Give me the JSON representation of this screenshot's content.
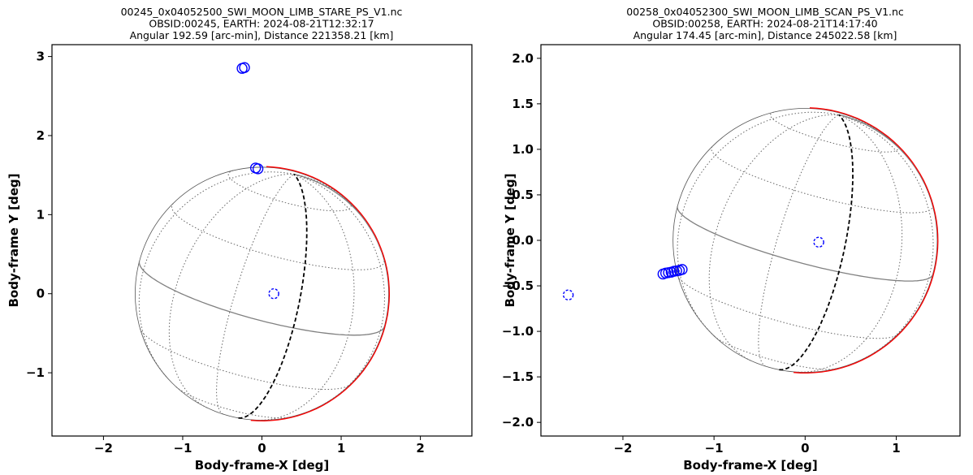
{
  "chart_data": [
    {
      "type": "scatter",
      "title_lines": [
        "00245_0x04052500_SWI_MOON_LIMB_STARE_PS_V1.nc",
        "OBSID:00245, EARTH: 2024-08-21T12:32:17",
        "Angular 192.59 [arc-min], Distance 221358.21 [km]"
      ],
      "xlabel": "Body-frame-X [deg]",
      "ylabel": "Body-frame Y [deg]",
      "xlim": [
        -2.65,
        2.65
      ],
      "ylim": [
        -1.8,
        3.15
      ],
      "xticks": [
        -2,
        -1,
        0,
        1,
        2
      ],
      "xtick_labels": [
        "−2",
        "−1",
        "0",
        "1",
        "2"
      ],
      "yticks": [
        -1,
        0,
        1,
        2,
        3
      ],
      "ytick_labels": [
        "−1",
        "0",
        "1",
        "2",
        "3"
      ],
      "sphere": {
        "center": [
          0.0,
          0.0
        ],
        "radius": 1.6,
        "tilt_deg": 12,
        "central_meridian_x": -0.16
      },
      "limb_color": "#ff0000",
      "marker_color": "#0000ff",
      "points": [
        {
          "x": 0.15,
          "y": 0.0,
          "style": "dashed"
        },
        {
          "x": -0.22,
          "y": 2.86
        },
        {
          "x": -0.25,
          "y": 2.85
        },
        {
          "x": -0.08,
          "y": 1.59
        },
        {
          "x": -0.05,
          "y": 1.58
        }
      ]
    },
    {
      "type": "scatter",
      "title_lines": [
        "00258_0x04052300_SWI_MOON_LIMB_SCAN_PS_V1.nc",
        "OBSID:00258, EARTH: 2024-08-21T14:17:40",
        "Angular 174.45 [arc-min], Distance 245022.58 [km]"
      ],
      "xlabel": "Body-frame-X [deg]",
      "ylabel": "Body-frame Y [deg]",
      "xlim": [
        -2.9,
        1.7
      ],
      "ylim": [
        -2.15,
        2.15
      ],
      "xticks": [
        -2,
        -1,
        0,
        1
      ],
      "xtick_labels": [
        "−2",
        "−1",
        "0",
        "1"
      ],
      "yticks": [
        -2.0,
        -1.5,
        -1.0,
        -0.5,
        0.0,
        0.5,
        1.0,
        1.5,
        2.0
      ],
      "ytick_labels": [
        "−2.0",
        "−1.5",
        "−1.0",
        "−0.5",
        "0.0",
        "0.5",
        "1.0",
        "1.5",
        "2.0"
      ],
      "sphere": {
        "center": [
          0.0,
          0.0
        ],
        "radius": 1.45,
        "tilt_deg": 10,
        "central_meridian_x": -0.05
      },
      "limb_color": "#ff0000",
      "marker_color": "#0000ff",
      "points": [
        {
          "x": 0.15,
          "y": -0.02,
          "style": "dashed"
        },
        {
          "x": -2.6,
          "y": -0.6,
          "style": "dashed"
        },
        {
          "x": -1.56,
          "y": -0.37
        },
        {
          "x": -1.53,
          "y": -0.36
        },
        {
          "x": -1.5,
          "y": -0.355
        },
        {
          "x": -1.47,
          "y": -0.35
        },
        {
          "x": -1.44,
          "y": -0.34
        },
        {
          "x": -1.41,
          "y": -0.335
        },
        {
          "x": -1.38,
          "y": -0.33
        },
        {
          "x": -1.35,
          "y": -0.32
        }
      ]
    }
  ]
}
